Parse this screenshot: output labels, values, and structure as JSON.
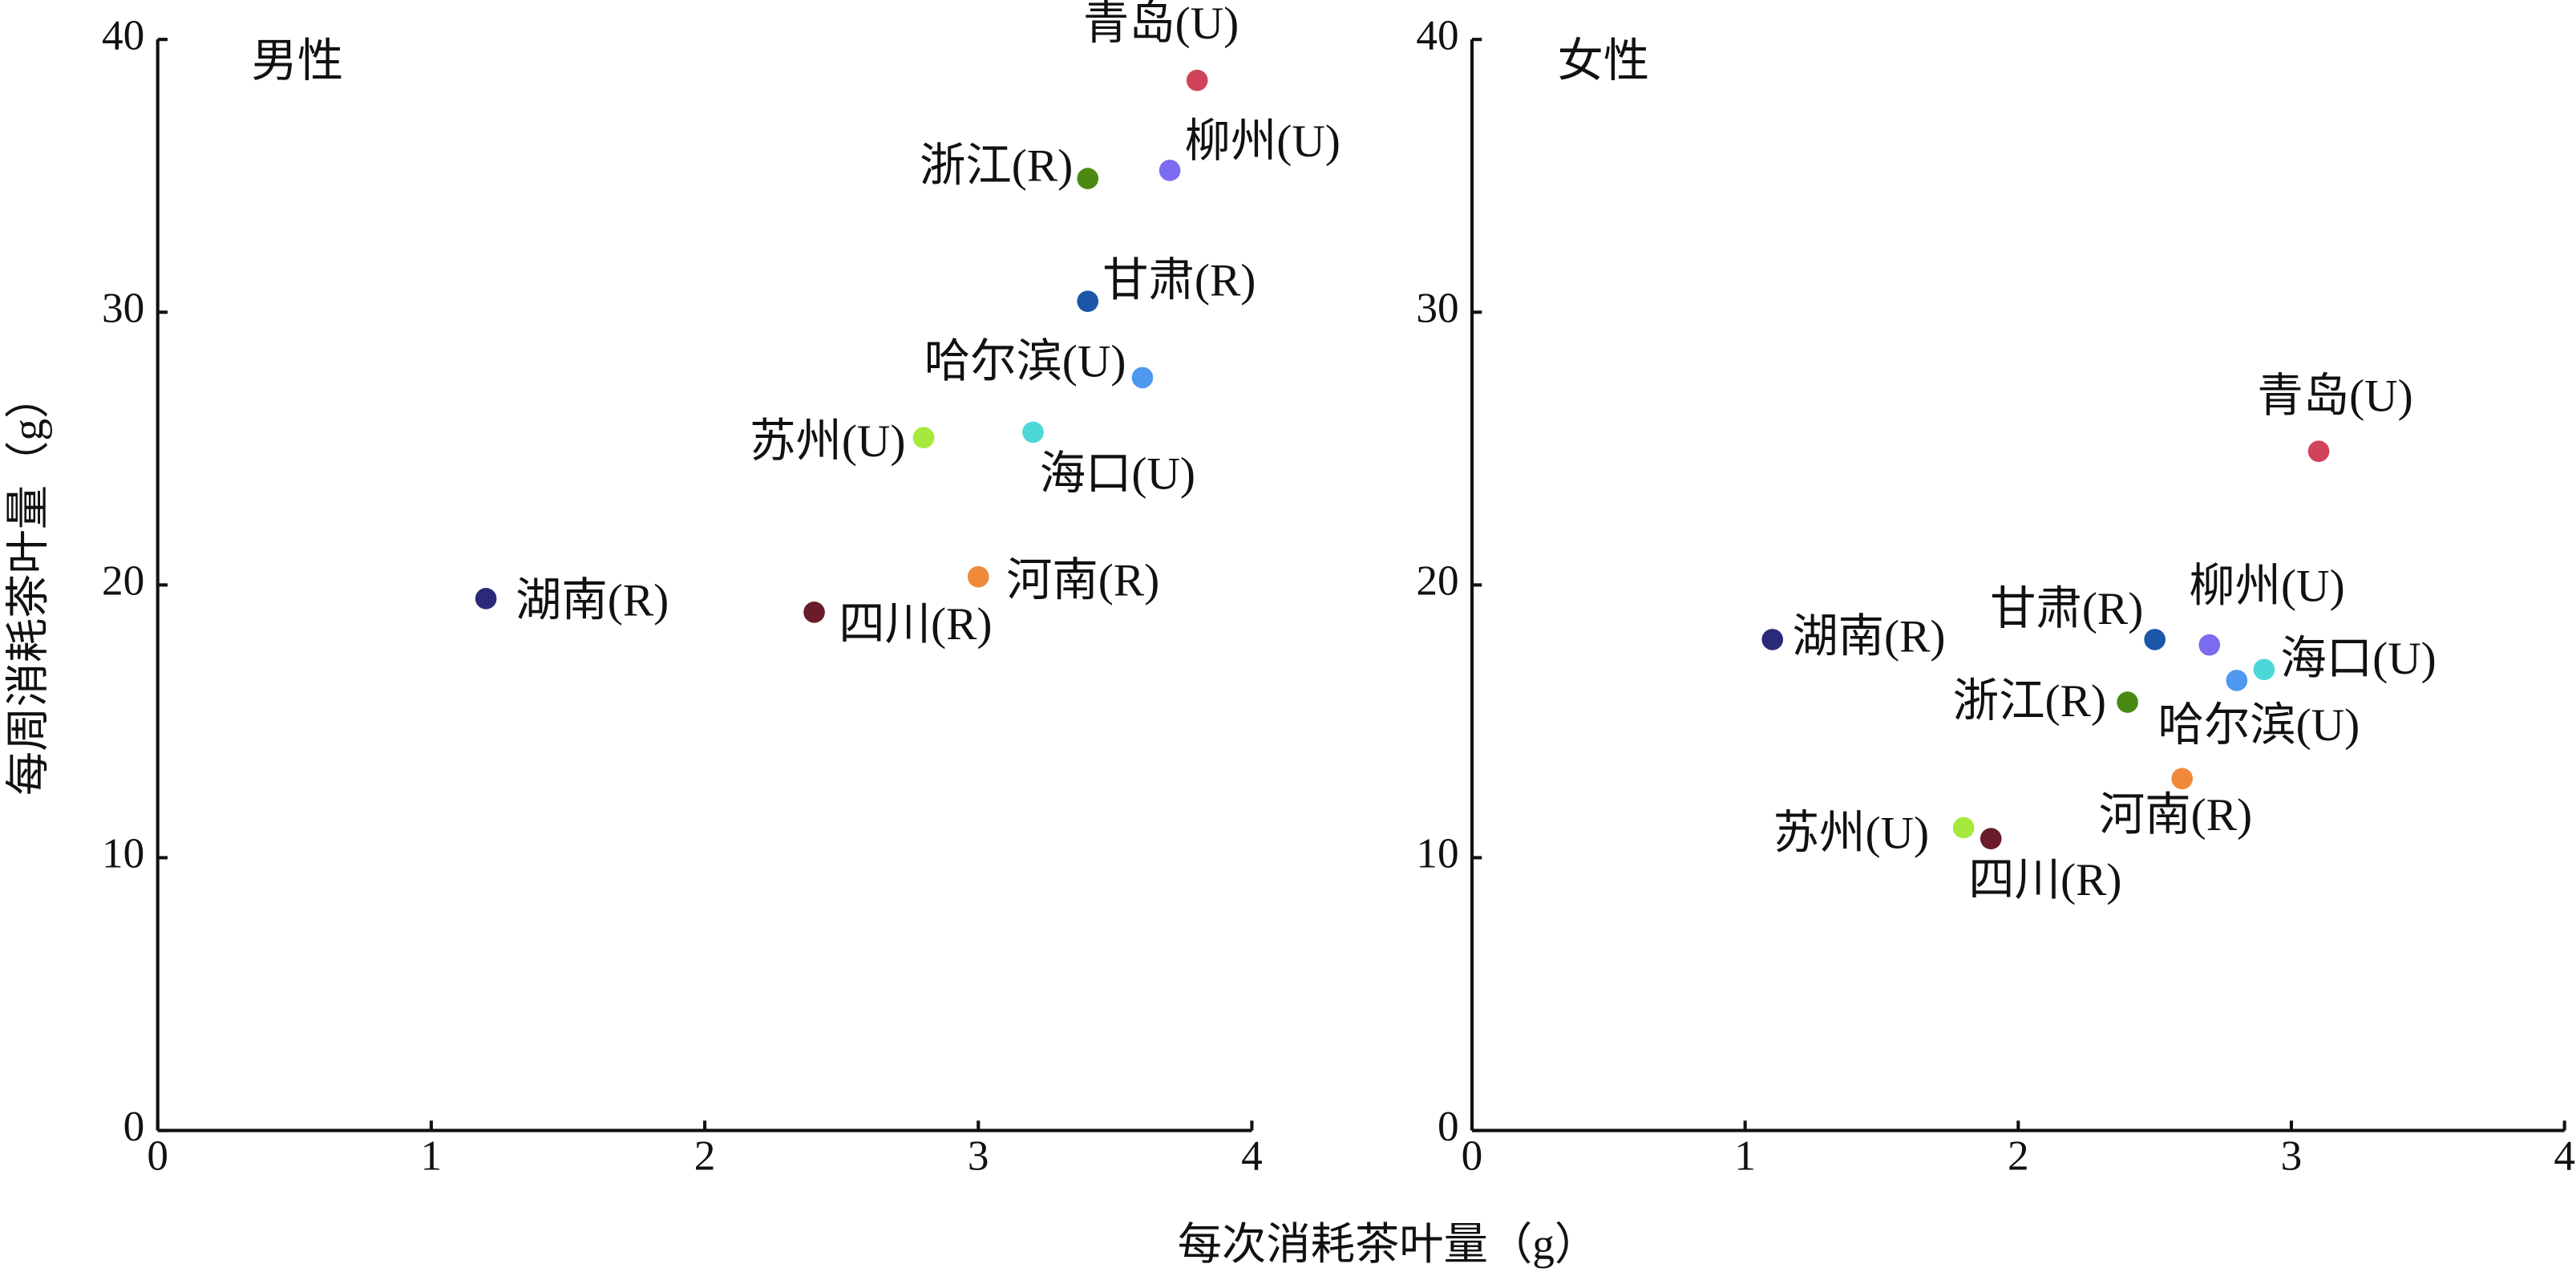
{
  "xlabel": "每次消耗茶叶量（g）",
  "ylabel": "每周消耗茶叶量（g）",
  "chart_data": [
    {
      "type": "scatter",
      "title": "男性",
      "point_labels": [
        "青岛(U)",
        "柳州(U)",
        "浙江(R)",
        "甘肃(R)",
        "哈尔滨(U)",
        "苏州(U)",
        "海口(U)",
        "湖南(R)",
        "四川(R)",
        "河南(R)"
      ],
      "x": [
        3.8,
        3.7,
        3.4,
        3.4,
        3.6,
        2.8,
        3.2,
        1.2,
        2.4,
        3.0
      ],
      "values": [
        38.5,
        35.2,
        34.9,
        30.4,
        27.6,
        25.4,
        25.6,
        19.5,
        19.0,
        20.3
      ],
      "colors": [
        "#d0435a",
        "#7b6cf0",
        "#4a8a12",
        "#1b56a8",
        "#4e98f0",
        "#a6e83c",
        "#4cd8d8",
        "#2b2a7a",
        "#6a1c2a",
        "#f08a3a"
      ],
      "xlim": [
        0,
        4
      ],
      "xticks": [
        0,
        1,
        2,
        3,
        4
      ],
      "ylim": [
        0,
        40
      ],
      "yticks": [
        0,
        10,
        20,
        30,
        40
      ]
    },
    {
      "type": "scatter",
      "title": "女性",
      "point_labels": [
        "青岛(U)",
        "柳州(U)",
        "甘肃(R)",
        "湖南(R)",
        "海口(U)",
        "哈尔滨(U)",
        "浙江(R)",
        "河南(R)",
        "苏州(U)",
        "四川(R)"
      ],
      "x": [
        3.1,
        2.7,
        2.5,
        1.1,
        2.9,
        2.8,
        2.4,
        2.6,
        1.8,
        1.9
      ],
      "values": [
        24.9,
        17.8,
        18.0,
        18.0,
        16.9,
        16.5,
        15.7,
        12.9,
        11.1,
        10.7
      ],
      "colors": [
        "#d0435a",
        "#7b6cf0",
        "#1b56a8",
        "#2b2a7a",
        "#4cd8d8",
        "#4e98f0",
        "#4a8a12",
        "#f08a3a",
        "#a6e83c",
        "#6a1c2a"
      ],
      "xlim": [
        0,
        4
      ],
      "xticks": [
        0,
        1,
        2,
        3,
        4
      ],
      "ylim": [
        0,
        40
      ],
      "yticks": [
        0,
        10,
        20,
        30,
        40
      ]
    }
  ]
}
